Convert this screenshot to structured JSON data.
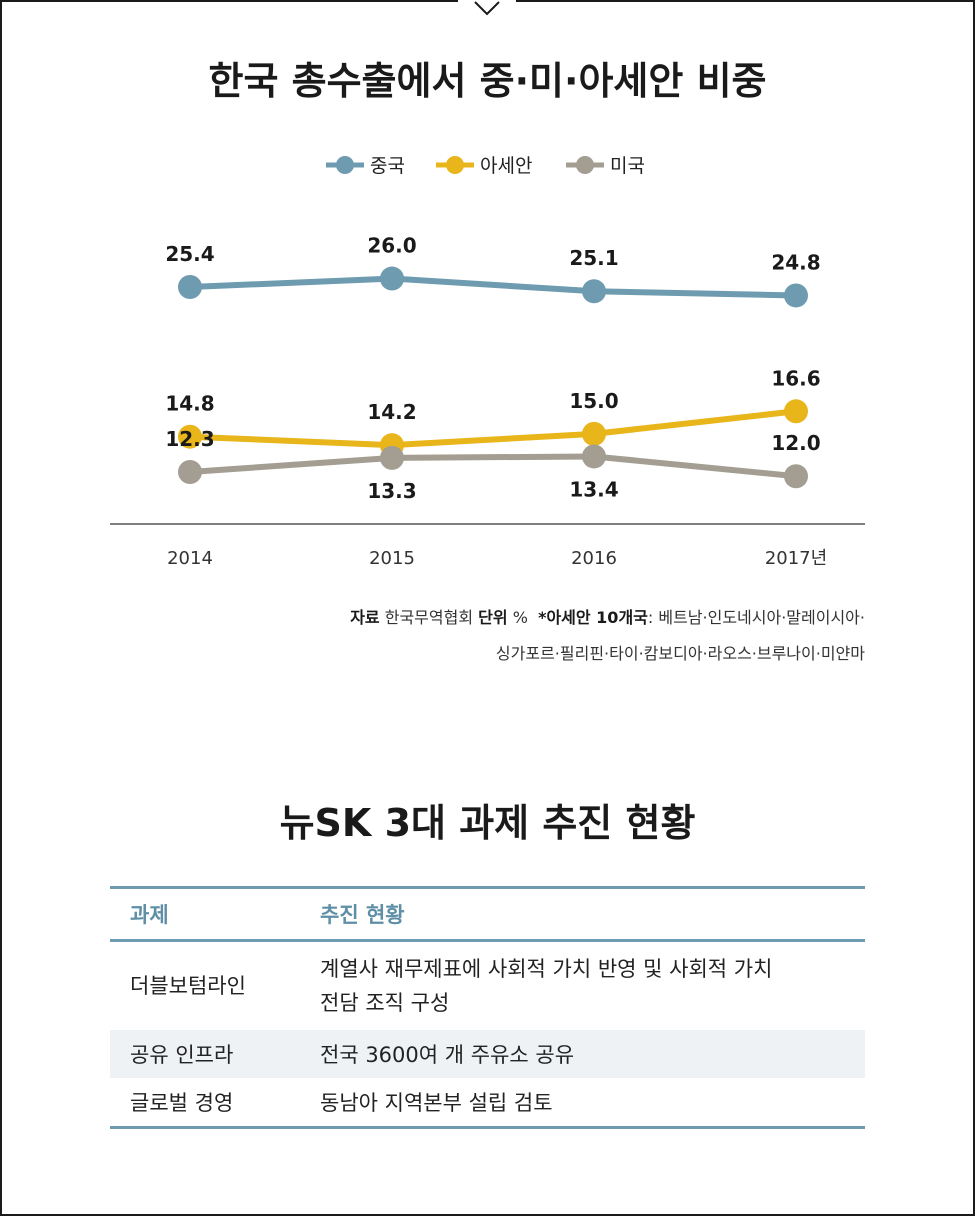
{
  "chart": {
    "title": "한국 총수출에서 중·미·아세안 비중",
    "source_label": "자료",
    "source_value": "한국무역협회",
    "unit_label": "단위",
    "unit_value": "%",
    "note_label": "*아세안 10개국",
    "note_value": ": 베트남·인도네시아·말레이시아·",
    "note_value_2": "싱가포르·필리핀·타이·캄보디아·라오스·브루나이·미얀마"
  },
  "chart_data": {
    "type": "line",
    "title": "한국 총수출에서 중·미·아세안 비중",
    "x": [
      "2014",
      "2015",
      "2016",
      "2017년"
    ],
    "legend_position": "top-center",
    "series": [
      {
        "name": "중국",
        "values": [
          25.4,
          26.0,
          25.1,
          24.8
        ],
        "color": "#6e9bb0"
      },
      {
        "name": "아세안",
        "values": [
          14.8,
          14.2,
          15.0,
          16.6
        ],
        "color": "#e8b51a"
      },
      {
        "name": "미국",
        "values": [
          12.3,
          13.3,
          13.4,
          12.0
        ],
        "color": "#a39d92"
      }
    ]
  },
  "table": {
    "title": "뉴SK 3대 과제 추진 현황",
    "headers": [
      "과제",
      "추진 현황"
    ],
    "rows": [
      {
        "task": "더블보텀라인",
        "status_line1": "계열사 재무제표에 사회적 가치 반영 및 사회적 가치",
        "status_line2": "전담 조직 구성"
      },
      {
        "task": "공유 인프라",
        "status_line1": "전국 3600여 개 주유소 공유"
      },
      {
        "task": "글로벌 경영",
        "status_line1": "동남아 지역본부 설립 검토"
      }
    ],
    "header_color": "#5f8fa6"
  }
}
